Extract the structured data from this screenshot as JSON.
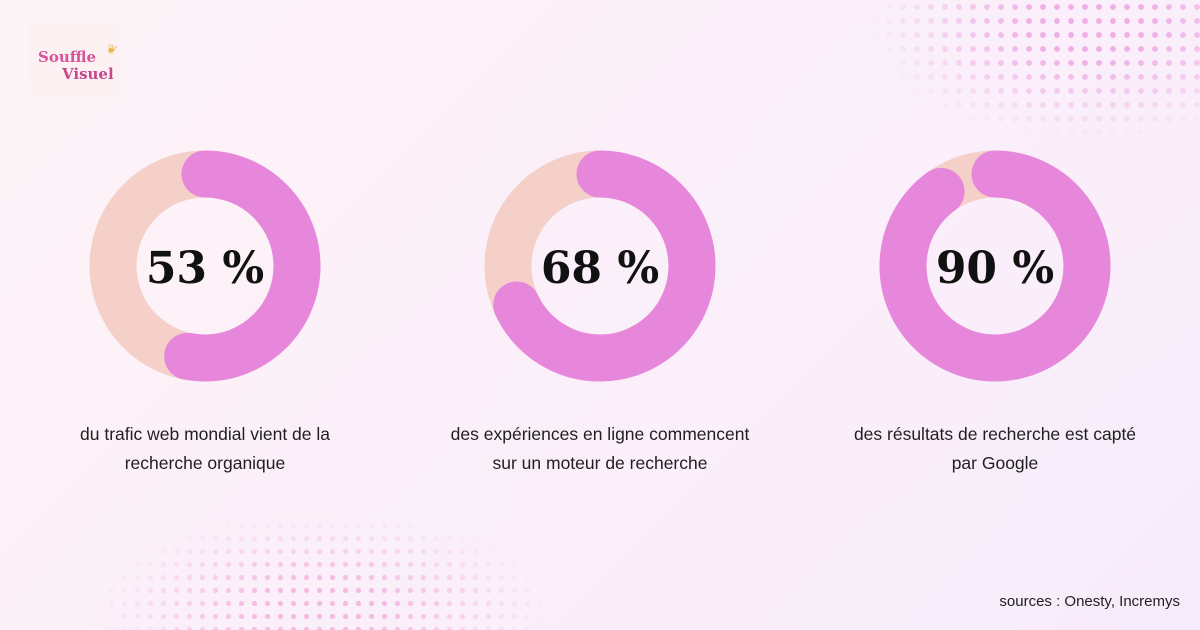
{
  "logo": {
    "line1": "Souffle",
    "line2": "Visuel"
  },
  "colors": {
    "track": "#f5d0c8",
    "arc": "#e687dc",
    "text": "#111111"
  },
  "chart_data": {
    "type": "donut",
    "series": [
      {
        "label": "53 %",
        "value": 53,
        "description": "du trafic web mondial vient de la recherche organique"
      },
      {
        "label": "68 %",
        "value": 68,
        "description": "des expériences en ligne commencent sur un moteur de recherche"
      },
      {
        "label": "90 %",
        "value": 90,
        "description": "des résultats de recherche est capté par Google"
      }
    ]
  },
  "footer": {
    "sources": "sources : Onesty, Incremys"
  }
}
